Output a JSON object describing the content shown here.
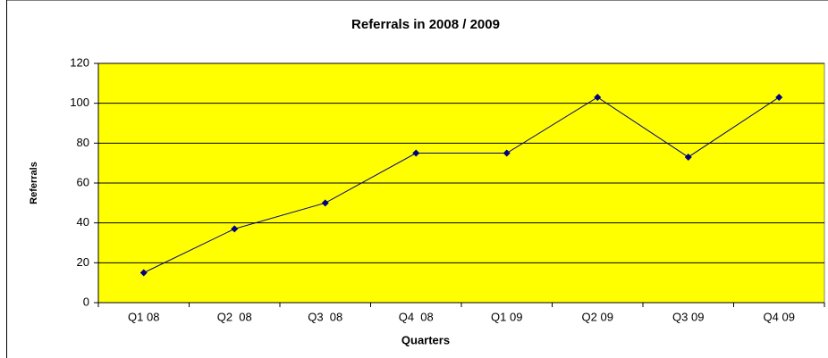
{
  "chart_data": {
    "type": "line",
    "title": "Referrals in 2008 / 2009",
    "x_label": "Quarters",
    "y_label": "Referrals",
    "categories": [
      "Q1 08",
      "Q2  08",
      "Q3  08",
      "Q4  08",
      "Q1 09",
      "Q2 09",
      "Q3 09",
      "Q4 09"
    ],
    "values": [
      15,
      37,
      50,
      75,
      75,
      103,
      73,
      103
    ],
    "color": "#000080",
    "background": "#ffff00",
    "ylim": [
      0,
      120
    ],
    "yticks": [
      0,
      20,
      40,
      60,
      80,
      100,
      120
    ],
    "grid": true
  }
}
